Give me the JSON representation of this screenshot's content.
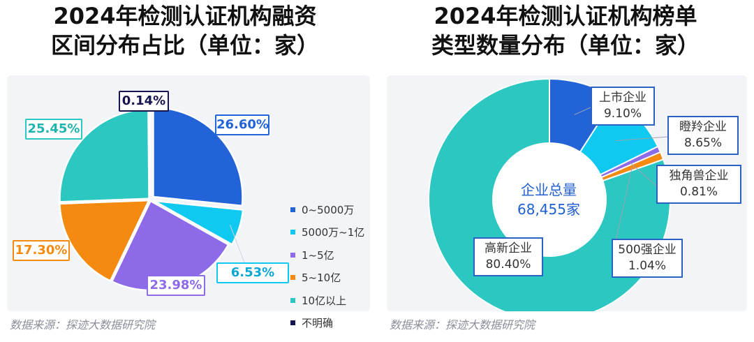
{
  "titles": {
    "left": [
      "2024年检测认证机构融资",
      "区间分布占比（单位：家）"
    ],
    "right": [
      "2024年检测认证机构榜单",
      "类型数量分布（单位：家）"
    ]
  },
  "source_left": "数据来源：探迹大数据研究院",
  "source_right": "数据来源：探迹大数据研究院",
  "colors": {
    "blue": "#2263d8",
    "cyan": "#0fc9f0",
    "purple": "#8c6ae8",
    "orange": "#f48a0f",
    "teal": "#2cc7c0",
    "navy": "#17154f"
  },
  "chart_data": [
    {
      "type": "pie",
      "title": "2024年检测认证机构融资区间分布占比（单位：家）",
      "legend_position": "right",
      "slices": [
        {
          "name": "0~5000万",
          "value": 26.6,
          "label": "26.60%",
          "color": "#2263d8"
        },
        {
          "name": "5000万~1亿",
          "value": 6.53,
          "label": "6.53%",
          "color": "#0fc9f0"
        },
        {
          "name": "1~5亿",
          "value": 23.98,
          "label": "23.98%",
          "color": "#8c6ae8"
        },
        {
          "name": "5~10亿",
          "value": 17.3,
          "label": "17.30%",
          "color": "#f48a0f"
        },
        {
          "name": "10亿以上",
          "value": 25.45,
          "label": "25.45%",
          "color": "#2cc7c0"
        },
        {
          "name": "不明确",
          "value": 0.14,
          "label": "0.14%",
          "color": "#17154f"
        }
      ]
    },
    {
      "type": "pie",
      "subtype": "donut",
      "title": "2024年检测认证机构榜单类型数量分布（单位：家）",
      "center_text": [
        "企业总量",
        "68,455家"
      ],
      "slices": [
        {
          "name": "上市企业",
          "value": 9.1,
          "label": "9.10%",
          "color": "#2263d8"
        },
        {
          "name": "瞪羚企业",
          "value": 8.65,
          "label": "8.65%",
          "color": "#0fc9f0"
        },
        {
          "name": "独角兽企业",
          "value": 0.81,
          "label": "0.81%",
          "color": "#8c6ae8"
        },
        {
          "name": "500强企业",
          "value": 1.04,
          "label": "1.04%",
          "color": "#f48a0f"
        },
        {
          "name": "高新企业",
          "value": 80.4,
          "label": "80.40%",
          "color": "#2cc7c0"
        }
      ]
    }
  ]
}
